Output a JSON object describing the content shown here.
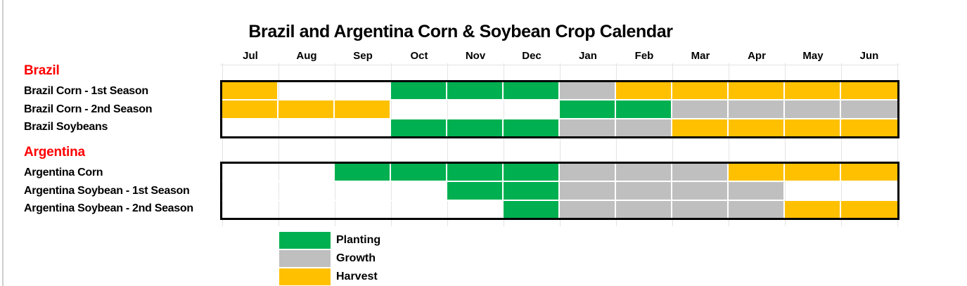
{
  "title": "Brazil and Argentina Corn & Soybean Crop Calendar",
  "months": [
    "Jul",
    "Aug",
    "Sep",
    "Oct",
    "Nov",
    "Dec",
    "Jan",
    "Feb",
    "Mar",
    "Apr",
    "May",
    "Jun"
  ],
  "colors": {
    "planting": "#00B050",
    "growth": "#BFBFBF",
    "harvest": "#FFC000",
    "none": "transparent",
    "section_header": "#FF0000",
    "grid": "#E4E4E4",
    "table_border": "#000000",
    "background": "#FFFFFF"
  },
  "sections": [
    {
      "header": "Brazil",
      "rows": [
        {
          "label": "Brazil Corn - 1st Season",
          "phases": [
            "harvest",
            "",
            "",
            "planting",
            "planting",
            "planting",
            "growth",
            "harvest",
            "harvest",
            "harvest",
            "harvest",
            "harvest"
          ]
        },
        {
          "label": "Brazil Corn - 2nd Season",
          "phases": [
            "harvest",
            "harvest",
            "harvest",
            "",
            "",
            "",
            "planting",
            "planting",
            "growth",
            "growth",
            "growth",
            "growth"
          ]
        },
        {
          "label": "Brazil Soybeans",
          "phases": [
            "",
            "",
            "",
            "planting",
            "planting",
            "planting",
            "growth",
            "growth",
            "harvest",
            "harvest",
            "harvest",
            "harvest"
          ]
        }
      ]
    },
    {
      "header": "Argentina",
      "rows": [
        {
          "label": "Argentina Corn",
          "phases": [
            "",
            "",
            "planting",
            "planting",
            "planting",
            "planting",
            "growth",
            "growth",
            "growth",
            "harvest",
            "harvest",
            "harvest"
          ]
        },
        {
          "label": "Argentina Soybean - 1st Season",
          "phases": [
            "",
            "",
            "",
            "",
            "planting",
            "planting",
            "growth",
            "growth",
            "growth",
            "growth",
            "",
            ""
          ]
        },
        {
          "label": "Argentina Soybean - 2nd Season",
          "phases": [
            "",
            "",
            "",
            "",
            "",
            "planting",
            "growth",
            "growth",
            "growth",
            "growth",
            "harvest",
            "harvest"
          ]
        }
      ]
    }
  ],
  "legend": [
    {
      "phase": "planting",
      "label": "Planting"
    },
    {
      "phase": "growth",
      "label": "Growth"
    },
    {
      "phase": "harvest",
      "label": "Harvest"
    }
  ],
  "chart_data": {
    "type": "heatmap",
    "title": "Brazil and Argentina Corn & Soybean Crop Calendar",
    "x": [
      "Jul",
      "Aug",
      "Sep",
      "Oct",
      "Nov",
      "Dec",
      "Jan",
      "Feb",
      "Mar",
      "Apr",
      "May",
      "Jun"
    ],
    "rows": [
      "Brazil Corn - 1st Season",
      "Brazil Corn - 2nd Season",
      "Brazil Soybeans",
      "Argentina Corn",
      "Argentina Soybean - 1st Season",
      "Argentina Soybean - 2nd Season"
    ],
    "values": [
      [
        "harvest",
        "",
        "",
        "planting",
        "planting",
        "planting",
        "growth",
        "harvest",
        "harvest",
        "harvest",
        "harvest",
        "harvest"
      ],
      [
        "harvest",
        "harvest",
        "harvest",
        "",
        "",
        "",
        "planting",
        "planting",
        "growth",
        "growth",
        "growth",
        "growth"
      ],
      [
        "",
        "",
        "",
        "planting",
        "planting",
        "planting",
        "growth",
        "growth",
        "harvest",
        "harvest",
        "harvest",
        "harvest"
      ],
      [
        "",
        "",
        "planting",
        "planting",
        "planting",
        "planting",
        "growth",
        "growth",
        "growth",
        "harvest",
        "harvest",
        "harvest"
      ],
      [
        "",
        "",
        "",
        "",
        "planting",
        "planting",
        "growth",
        "growth",
        "growth",
        "growth",
        "",
        ""
      ],
      [
        "",
        "",
        "",
        "",
        "",
        "planting",
        "growth",
        "growth",
        "growth",
        "growth",
        "harvest",
        "harvest"
      ]
    ],
    "legend_entries": [
      "Planting",
      "Growth",
      "Harvest"
    ],
    "legend_position": "bottom-left",
    "grid": true
  }
}
